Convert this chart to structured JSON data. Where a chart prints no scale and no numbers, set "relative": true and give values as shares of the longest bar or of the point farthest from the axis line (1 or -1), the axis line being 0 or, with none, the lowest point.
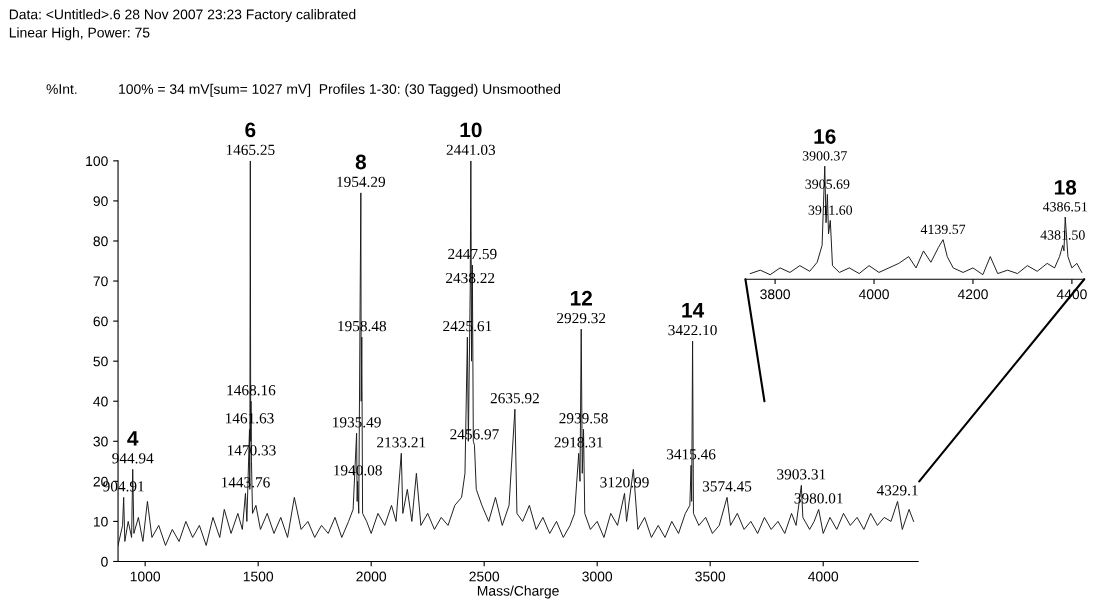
{
  "chart_data": [
    {
      "type": "line",
      "title": "Data: <Untitled>.6 28 Nov 2007 23:23 Factory calibrated",
      "subtitle": "Linear High, Power: 75",
      "xlabel": "Mass/Charge",
      "ylabel": "%Int.",
      "annotations": [
        "100% = 34 mV[sum= 1027 mV]  Profiles 1-30: (30 Tagged) Unsmoothed",
        {
          "text": "904.91",
          "x": 904.91,
          "y": 16
        },
        {
          "text": "944.94",
          "x": 944.94,
          "y": 23
        },
        "4",
        {
          "text": "1443.76",
          "x": 1443.76,
          "y": 17
        },
        {
          "text": "1461.63",
          "x": 1461.63,
          "y": 33
        },
        {
          "text": "1465.25",
          "x": 1465.25,
          "y": 100
        },
        "6",
        {
          "text": "1468.16",
          "x": 1468.16,
          "y": 40
        },
        {
          "text": "1470.33",
          "x": 1470.33,
          "y": 25
        },
        {
          "text": "1935.49",
          "x": 1935.49,
          "y": 32
        },
        {
          "text": "1940.08",
          "x": 1940.08,
          "y": 20
        },
        {
          "text": "1954.29",
          "x": 1954.29,
          "y": 92
        },
        "8",
        {
          "text": "1958.48",
          "x": 1958.48,
          "y": 56
        },
        {
          "text": "2133.21",
          "x": 2133.21,
          "y": 27
        },
        {
          "text": "2425.61",
          "x": 2425.61,
          "y": 56
        },
        {
          "text": "2438.22",
          "x": 2438.22,
          "y": 68
        },
        {
          "text": "2441.03",
          "x": 2441.03,
          "y": 100
        },
        "10",
        {
          "text": "2447.59",
          "x": 2447.59,
          "y": 74
        },
        {
          "text": "2456.97",
          "x": 2456.97,
          "y": 29
        },
        {
          "text": "2635.92",
          "x": 2635.92,
          "y": 38
        },
        {
          "text": "2918.31",
          "x": 2918.31,
          "y": 27
        },
        {
          "text": "2929.32",
          "x": 2929.32,
          "y": 58
        },
        "12",
        {
          "text": "2939.58",
          "x": 2939.58,
          "y": 33
        },
        {
          "text": "3120.99",
          "x": 3120.99,
          "y": 17
        },
        {
          "text": "3415.46",
          "x": 3415.46,
          "y": 24
        },
        {
          "text": "3422.10",
          "x": 3422.1,
          "y": 55
        },
        "14",
        {
          "text": "3574.45",
          "x": 3574.45,
          "y": 16
        },
        {
          "text": "3903.31",
          "x": 3903.31,
          "y": 19
        },
        {
          "text": "3980.01",
          "x": 3980.01,
          "y": 13
        },
        {
          "text": "4329.1",
          "x": 4329.1,
          "y": 15
        }
      ],
      "xlim": [
        880,
        4420
      ],
      "ylim": [
        0,
        100
      ],
      "xticks": [
        1000,
        1500,
        2000,
        2500,
        3000,
        3500,
        4000
      ],
      "yticks": [
        0,
        10,
        20,
        30,
        40,
        50,
        60,
        70,
        80,
        90,
        100
      ],
      "x": [
        880,
        900,
        904.91,
        910,
        925,
        940,
        944.94,
        950,
        970,
        990,
        1010,
        1030,
        1060,
        1090,
        1120,
        1150,
        1180,
        1210,
        1240,
        1270,
        1300,
        1330,
        1350,
        1380,
        1410,
        1430,
        1443.76,
        1450,
        1461.63,
        1463,
        1465.25,
        1467,
        1468.16,
        1470.33,
        1475,
        1490,
        1510,
        1540,
        1570,
        1600,
        1630,
        1660,
        1690,
        1720,
        1750,
        1780,
        1810,
        1840,
        1870,
        1900,
        1920,
        1935.49,
        1938,
        1940.08,
        1945,
        1954.29,
        1956,
        1958.48,
        1962,
        1980,
        2000,
        2030,
        2060,
        2090,
        2110,
        2133.21,
        2140,
        2160,
        2180,
        2200,
        2220,
        2250,
        2280,
        2310,
        2340,
        2370,
        2400,
        2415,
        2425.61,
        2430,
        2438.22,
        2441.03,
        2444,
        2447.59,
        2452,
        2456.97,
        2465,
        2490,
        2520,
        2550,
        2580,
        2610,
        2635.92,
        2645,
        2670,
        2700,
        2730,
        2760,
        2790,
        2820,
        2850,
        2880,
        2900,
        2918.31,
        2924,
        2929.32,
        2934,
        2939.58,
        2945,
        2970,
        3000,
        3030,
        3060,
        3090,
        3120.99,
        3130,
        3160,
        3180,
        3210,
        3240,
        3270,
        3300,
        3330,
        3360,
        3390,
        3410,
        3415.46,
        3418,
        3422.1,
        3426,
        3450,
        3480,
        3510,
        3540,
        3574.45,
        3590,
        3620,
        3650,
        3680,
        3710,
        3740,
        3770,
        3800,
        3830,
        3860,
        3880,
        3903.31,
        3910,
        3940,
        3960,
        3980.01,
        4000,
        4030,
        4060,
        4090,
        4120,
        4150,
        4180,
        4210,
        4240,
        4270,
        4300,
        4329.1,
        4350,
        4380,
        4400
      ],
      "series": [
        {
          "color": "#1a1a1a",
          "values": [
            4,
            9,
            16,
            5,
            10,
            6,
            23,
            7,
            11,
            5,
            15,
            6,
            9,
            4,
            8,
            5,
            10,
            6,
            9,
            4,
            11,
            6,
            13,
            7,
            12,
            8,
            17,
            10,
            33,
            18,
            100,
            30,
            40,
            25,
            12,
            14,
            8,
            12,
            7,
            11,
            6,
            16,
            8,
            10,
            6,
            9,
            7,
            11,
            6,
            10,
            13,
            32,
            15,
            20,
            12,
            92,
            40,
            56,
            12,
            10,
            7,
            12,
            9,
            14,
            10,
            27,
            12,
            18,
            10,
            22,
            9,
            12,
            8,
            11,
            9,
            14,
            16,
            22,
            56,
            30,
            68,
            100,
            50,
            74,
            30,
            29,
            18,
            14,
            10,
            16,
            9,
            14,
            38,
            12,
            10,
            14,
            8,
            11,
            7,
            10,
            6,
            9,
            12,
            27,
            20,
            58,
            22,
            33,
            12,
            8,
            10,
            6,
            12,
            9,
            17,
            10,
            23,
            8,
            11,
            6,
            9,
            6,
            10,
            7,
            12,
            14,
            24,
            15,
            55,
            12,
            9,
            11,
            7,
            9,
            16,
            9,
            12,
            8,
            10,
            7,
            11,
            8,
            10,
            7,
            12,
            9,
            19,
            11,
            8,
            10,
            13,
            7,
            11,
            8,
            12,
            9,
            11,
            8,
            12,
            9,
            11,
            10,
            15,
            8,
            13,
            10
          ]
        }
      ]
    },
    {
      "type": "line",
      "relative": true,
      "tick_labels": "x",
      "annotations": [
        {
          "text": "3900.37",
          "x": 3900.37,
          "y": 1.0
        },
        "16",
        {
          "text": "3905.69",
          "x": 3905.69,
          "y": 0.75
        },
        {
          "text": "3911.60",
          "x": 3911.6,
          "y": 0.52
        },
        {
          "text": "4139.57",
          "x": 4139.57,
          "y": 0.35
        },
        {
          "text": "4381.50",
          "x": 4381.5,
          "y": 0.3
        },
        {
          "text": "4386.51",
          "x": 4386.51,
          "y": 0.55
        },
        "18"
      ],
      "xlim": [
        3740,
        4425
      ],
      "xticks": [
        3800,
        4000,
        4200,
        4400
      ],
      "x": [
        3750,
        3770,
        3790,
        3810,
        3830,
        3850,
        3870,
        3885,
        3895,
        3900.37,
        3903,
        3905.69,
        3908,
        3911.6,
        3916,
        3930,
        3950,
        3970,
        3990,
        4010,
        4030,
        4050,
        4070,
        4085,
        4100,
        4115,
        4130,
        4139.57,
        4148,
        4160,
        4180,
        4200,
        4220,
        4235,
        4250,
        4270,
        4290,
        4310,
        4330,
        4350,
        4365,
        4375,
        4381.5,
        4384,
        4386.51,
        4392,
        4400,
        4410,
        4420
      ],
      "series": [
        {
          "color": "#1a1a1a",
          "values": [
            0.05,
            0.08,
            0.04,
            0.1,
            0.06,
            0.12,
            0.07,
            0.15,
            0.3,
            1.0,
            0.5,
            0.75,
            0.4,
            0.52,
            0.12,
            0.06,
            0.1,
            0.05,
            0.12,
            0.06,
            0.1,
            0.14,
            0.2,
            0.1,
            0.25,
            0.15,
            0.28,
            0.35,
            0.2,
            0.1,
            0.06,
            0.1,
            0.04,
            0.2,
            0.05,
            0.08,
            0.05,
            0.12,
            0.07,
            0.14,
            0.1,
            0.2,
            0.3,
            0.25,
            0.55,
            0.2,
            0.1,
            0.14,
            0.06
          ]
        }
      ]
    }
  ]
}
